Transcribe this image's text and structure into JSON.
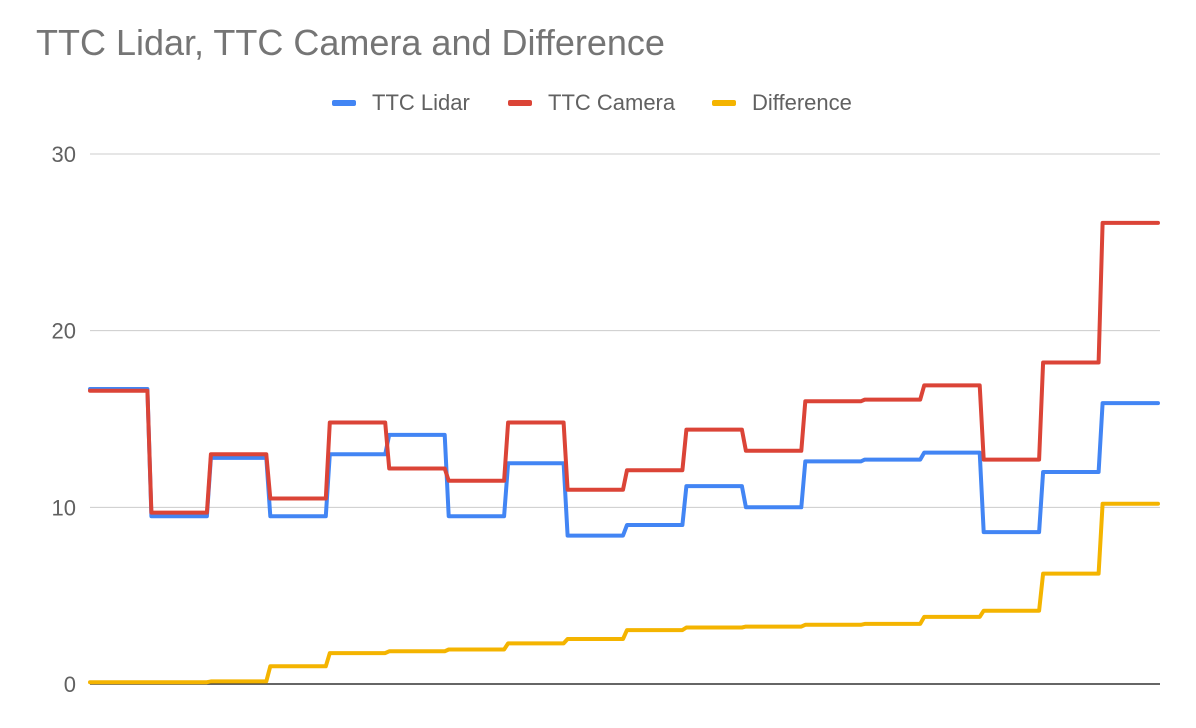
{
  "chart_data": {
    "type": "line",
    "title": "TTC Lidar, TTC Camera and Difference",
    "xlabel": "",
    "ylabel": "",
    "ylim": [
      0,
      30
    ],
    "yticks": [
      0,
      10,
      20,
      30
    ],
    "grid": true,
    "legend_position": "top",
    "x": [
      1,
      2,
      3,
      4,
      5,
      6,
      7,
      8,
      9,
      10,
      11,
      12,
      13,
      14,
      15,
      16,
      17,
      18,
      19
    ],
    "series": [
      {
        "name": "TTC Lidar",
        "color": "#4285F4",
        "values": [
          16.7,
          9.5,
          12.8,
          9.5,
          13.0,
          14.1,
          9.5,
          12.5,
          8.4,
          9.0,
          11.2,
          10.0,
          12.6,
          12.7,
          13.1,
          8.6,
          12.0,
          15.9,
          15.9
        ]
      },
      {
        "name": "TTC Camera",
        "color": "#DB4437",
        "values": [
          16.6,
          9.7,
          13.0,
          10.5,
          14.8,
          12.2,
          11.5,
          14.8,
          11.0,
          12.1,
          14.4,
          13.2,
          16.0,
          16.1,
          16.9,
          12.7,
          18.2,
          26.1,
          26.1
        ]
      },
      {
        "name": "Difference",
        "color": "#F4B400",
        "values": [
          0.1,
          0.1,
          0.15,
          1.0,
          1.75,
          1.85,
          1.95,
          2.3,
          2.55,
          3.05,
          3.2,
          3.25,
          3.35,
          3.4,
          3.8,
          4.15,
          6.25,
          10.2,
          10.2
        ]
      }
    ]
  }
}
